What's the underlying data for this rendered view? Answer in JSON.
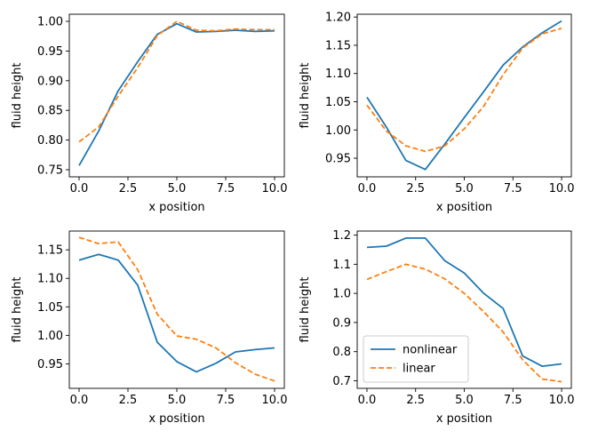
{
  "colors": {
    "nonlinear": "#1f77b4",
    "linear": "#ff7f0e",
    "axis": "#000000",
    "background": "#ffffff"
  },
  "chart_data": [
    {
      "type": "line",
      "title": "",
      "xlabel": "x position",
      "ylabel": "fluid height",
      "x": [
        0,
        1,
        2,
        3,
        4,
        5,
        6,
        7,
        8,
        9,
        10
      ],
      "xlim": [
        -0.5,
        10.5
      ],
      "ylim": [
        0.738,
        1.012
      ],
      "xticks": [
        0,
        2.5,
        5,
        7.5,
        10
      ],
      "xtick_labels": [
        "0.0",
        "2.5",
        "5.0",
        "7.5",
        "10.0"
      ],
      "yticks": [
        0.75,
        0.8,
        0.85,
        0.9,
        0.95,
        1.0
      ],
      "ytick_labels": [
        "0.75",
        "0.80",
        "0.85",
        "0.90",
        "0.95",
        "1.00"
      ],
      "series": [
        {
          "name": "nonlinear",
          "style": "solid",
          "values": [
            0.757,
            0.815,
            0.883,
            0.932,
            0.978,
            0.996,
            0.982,
            0.983,
            0.985,
            0.983,
            0.984
          ]
        },
        {
          "name": "linear",
          "style": "dashed",
          "values": [
            0.797,
            0.822,
            0.874,
            0.922,
            0.976,
            1.0,
            0.985,
            0.984,
            0.987,
            0.986,
            0.986
          ]
        }
      ]
    },
    {
      "type": "line",
      "title": "",
      "xlabel": "x position",
      "ylabel": "fluid height",
      "x": [
        0,
        1,
        2,
        3,
        4,
        5,
        6,
        7,
        8,
        9,
        10
      ],
      "xlim": [
        -0.5,
        10.5
      ],
      "ylim": [
        0.917,
        1.205
      ],
      "xticks": [
        0,
        2.5,
        5,
        7.5,
        10
      ],
      "xtick_labels": [
        "0.0",
        "2.5",
        "5.0",
        "7.5",
        "10.0"
      ],
      "yticks": [
        0.95,
        1.0,
        1.05,
        1.1,
        1.15,
        1.2
      ],
      "ytick_labels": [
        "0.95",
        "1.00",
        "1.05",
        "1.10",
        "1.15",
        "1.20"
      ],
      "series": [
        {
          "name": "nonlinear",
          "style": "solid",
          "values": [
            1.058,
            1.005,
            0.946,
            0.93,
            0.975,
            1.022,
            1.068,
            1.115,
            1.147,
            1.172,
            1.193
          ]
        },
        {
          "name": "linear",
          "style": "dashed",
          "values": [
            1.044,
            0.998,
            0.972,
            0.962,
            0.972,
            1.002,
            1.042,
            1.098,
            1.145,
            1.17,
            1.18
          ]
        }
      ]
    },
    {
      "type": "line",
      "title": "",
      "xlabel": "x position",
      "ylabel": "fluid height",
      "x": [
        0,
        1,
        2,
        3,
        4,
        5,
        6,
        7,
        8,
        9,
        10
      ],
      "xlim": [
        -0.5,
        10.5
      ],
      "ylim": [
        0.907,
        1.183
      ],
      "xticks": [
        0,
        2.5,
        5,
        7.5,
        10
      ],
      "xtick_labels": [
        "0.0",
        "2.5",
        "5.0",
        "7.5",
        "10.0"
      ],
      "yticks": [
        0.95,
        1.0,
        1.05,
        1.1,
        1.15
      ],
      "ytick_labels": [
        "0.95",
        "1.00",
        "1.05",
        "1.10",
        "1.15"
      ],
      "series": [
        {
          "name": "nonlinear",
          "style": "solid",
          "values": [
            1.132,
            1.142,
            1.132,
            1.088,
            0.988,
            0.954,
            0.936,
            0.951,
            0.971,
            0.975,
            0.978
          ]
        },
        {
          "name": "linear",
          "style": "dashed",
          "values": [
            1.172,
            1.161,
            1.164,
            1.115,
            1.037,
            0.999,
            0.993,
            0.978,
            0.952,
            0.932,
            0.92
          ]
        }
      ]
    },
    {
      "type": "line",
      "title": "",
      "xlabel": "x position",
      "ylabel": "fluid height",
      "x": [
        0,
        1,
        2,
        3,
        4,
        5,
        6,
        7,
        8,
        9,
        10
      ],
      "xlim": [
        -0.5,
        10.5
      ],
      "ylim": [
        0.674,
        1.214
      ],
      "xticks": [
        0,
        2.5,
        5,
        7.5,
        10
      ],
      "xtick_labels": [
        "0.0",
        "2.5",
        "5.0",
        "7.5",
        "10.0"
      ],
      "yticks": [
        0.7,
        0.8,
        0.9,
        1.0,
        1.1,
        1.2
      ],
      "ytick_labels": [
        "0.7",
        "0.8",
        "0.9",
        "1.0",
        "1.1",
        "1.2"
      ],
      "legend": {
        "placement": "lower-left",
        "entries": [
          "nonlinear",
          "linear"
        ]
      },
      "series": [
        {
          "name": "nonlinear",
          "style": "solid",
          "values": [
            1.158,
            1.162,
            1.19,
            1.19,
            1.112,
            1.07,
            1.0,
            0.948,
            0.785,
            0.75,
            0.758
          ]
        },
        {
          "name": "linear",
          "style": "dashed",
          "values": [
            1.048,
            1.075,
            1.1,
            1.083,
            1.05,
            1.0,
            0.937,
            0.867,
            0.772,
            0.706,
            0.697
          ]
        }
      ]
    }
  ]
}
